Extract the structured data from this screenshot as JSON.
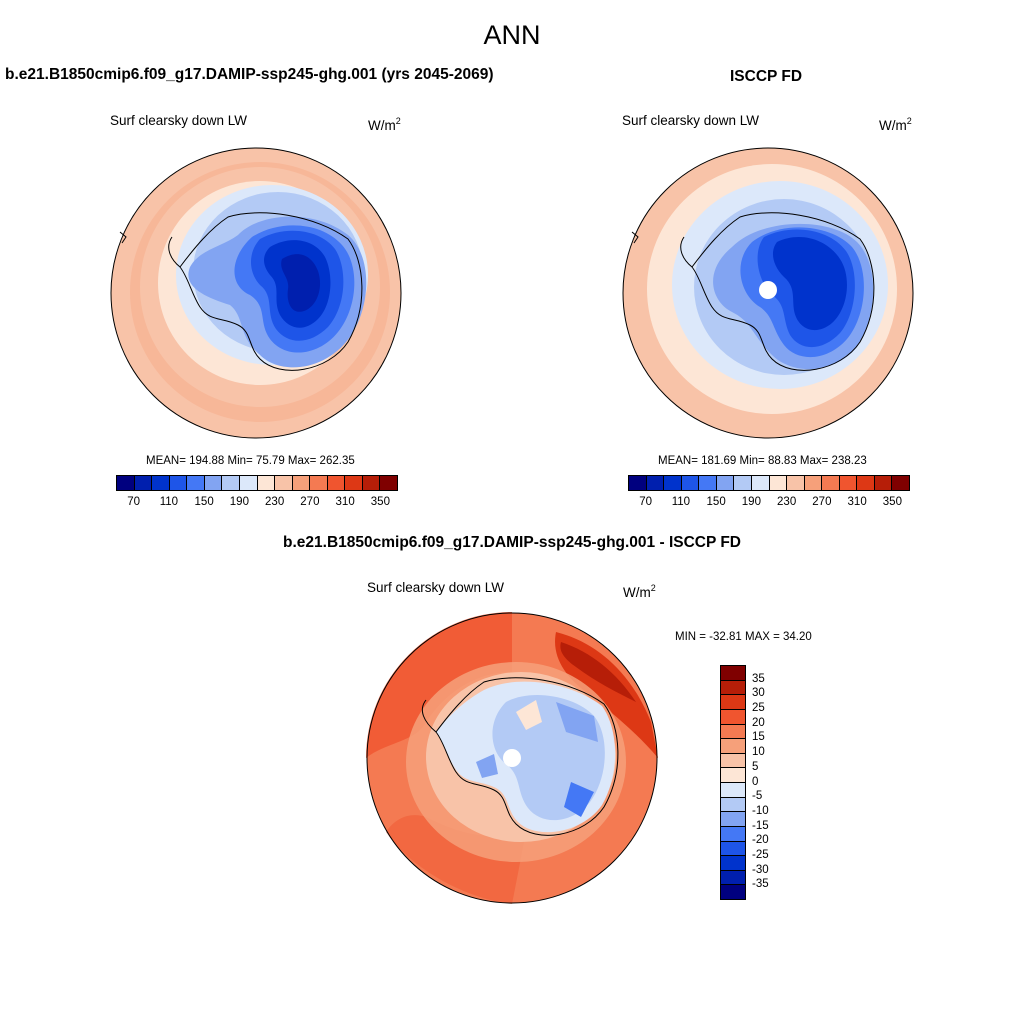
{
  "title": "ANN",
  "panels": {
    "left": {
      "case_title": "b.e21.B1850cmip6.f09_g17.DAMIP-ssp245-ghg.001 (yrs 2045-2069)",
      "variable": "Surf clearsky down LW",
      "units_base": "W/m",
      "units_exp": "2",
      "stats": "MEAN= 194.88  Min=  75.79  Max= 262.35"
    },
    "right": {
      "case_title": "ISCCP FD",
      "variable": "Surf clearsky down LW",
      "units_base": "W/m",
      "units_exp": "2",
      "stats": "MEAN= 181.69  Min=  88.83  Max= 238.23"
    },
    "diff": {
      "case_title": "b.e21.B1850cmip6.f09_g17.DAMIP-ssp245-ghg.001 - ISCCP FD",
      "variable": "Surf clearsky down LW",
      "units_base": "W/m",
      "units_exp": "2",
      "stats": "MIN = -32.81 MAX =  34.20"
    }
  },
  "colorbar_abs": {
    "colors": [
      "#00007f",
      "#001fae",
      "#0033cc",
      "#1e55e8",
      "#4478f5",
      "#82a4f2",
      "#b3caf5",
      "#dce8fa",
      "#fde6d6",
      "#f8c3a8",
      "#f6a07a",
      "#f47a52",
      "#f0552f",
      "#dd3815",
      "#b61e08",
      "#7f0000"
    ],
    "labels": [
      "70",
      "110",
      "150",
      "190",
      "230",
      "270",
      "310",
      "350"
    ]
  },
  "colorbar_diff": {
    "colors": [
      "#7f0000",
      "#b61e08",
      "#dd3815",
      "#f0552f",
      "#f47a52",
      "#f6a07a",
      "#f8c3a8",
      "#fde6d6",
      "#dce8fa",
      "#b3caf5",
      "#82a4f2",
      "#4478f5",
      "#1e55e8",
      "#0033cc",
      "#001fae",
      "#00007f"
    ],
    "labels": [
      "35",
      "30",
      "25",
      "20",
      "15",
      "10",
      "5",
      "0",
      "-5",
      "-10",
      "-15",
      "-20",
      "-25",
      "-30",
      "-35"
    ]
  }
}
